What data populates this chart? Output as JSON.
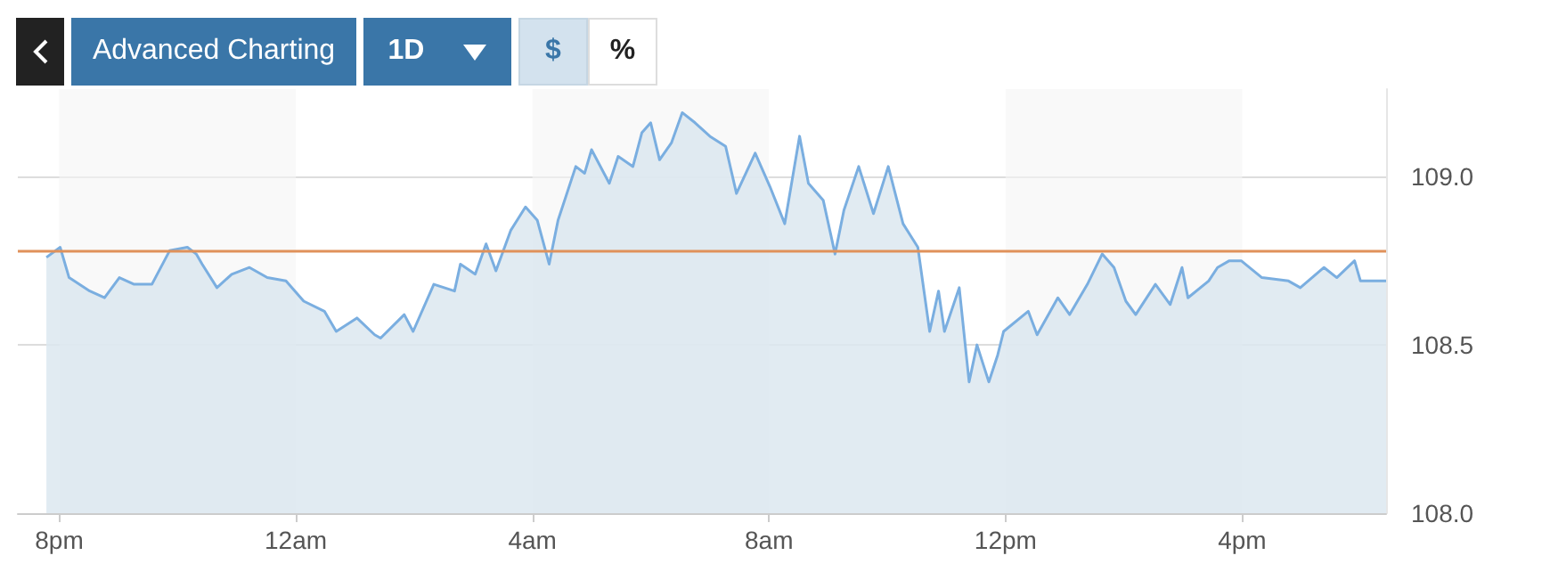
{
  "chart_data": {
    "type": "area",
    "annotations": [
      "Advanced Charting",
      "1D",
      "$",
      "%"
    ],
    "x": [
      "--01-01T19:47",
      "--01-01T20:01",
      "--01-01T20:10",
      "--01-01T20:31",
      "--01-01T20:46",
      "--01-01T21:01",
      "--01-01T21:16",
      "--01-01T21:34",
      "--01-01T21:52",
      "--01-01T22:10",
      "--01-01T22:19",
      "--01-01T22:25",
      "--01-01T22:40",
      "--01-01T22:55",
      "--01-01T23:13",
      "--01-01T23:31",
      "--01-01T23:50",
      "--01-02T00:08",
      "--01-02T00:29",
      "--01-02T00:41",
      "--01-02T01:02",
      "--01-02T01:20",
      "--01-02T01:26",
      "--01-02T01:50",
      "--01-02T01:59",
      "--01-02T02:20",
      "--01-02T02:41",
      "--01-02T02:47",
      "--01-02T03:02",
      "--01-02T03:13",
      "--01-02T03:23",
      "--01-02T03:38",
      "--01-02T03:53",
      "--01-02T04:05",
      "--01-02T04:17",
      "--01-02T04:26",
      "--01-02T04:44",
      "--01-02T04:53",
      "--01-02T05:00",
      "--01-02T05:18",
      "--01-02T05:27",
      "--01-02T05:42",
      "--01-02T05:51",
      "--01-02T06:00",
      "--01-02T06:09",
      "--01-02T06:21",
      "--01-02T06:32",
      "--01-02T06:45",
      "--01-02T07:00",
      "--01-02T07:16",
      "--01-02T07:27",
      "--01-02T07:46",
      "--01-02T08:01",
      "--01-02T08:16",
      "--01-02T08:31",
      "--01-02T08:40",
      "--01-02T08:55",
      "--01-02T09:07",
      "--01-02T09:16",
      "--01-02T09:31",
      "--01-02T09:46",
      "--01-02T10:01",
      "--01-02T10:16",
      "--01-02T10:31",
      "--01-02T10:43",
      "--01-02T10:52",
      "--01-02T10:58",
      "--01-02T11:13",
      "--01-02T11:23",
      "--01-02T11:31",
      "--01-02T11:43",
      "--01-02T11:52",
      "--01-02T11:58",
      "--01-02T12:23",
      "--01-02T12:32",
      "--01-02T12:53",
      "--01-02T13:05",
      "--01-02T13:23",
      "--01-02T13:38",
      "--01-02T13:50",
      "--01-02T14:02",
      "--01-02T14:12",
      "--01-02T14:32",
      "--01-02T14:47",
      "--01-02T14:59",
      "--01-02T15:05",
      "--01-02T15:26",
      "--01-02T15:35",
      "--01-02T15:47",
      "--01-02T15:59",
      "--01-02T16:20",
      "--01-02T16:47",
      "--01-02T16:59",
      "--01-02T17:23",
      "--01-02T17:36",
      "--01-02T17:54",
      "--01-02T18:00",
      "--01-02T18:26"
    ],
    "series": [
      {
        "color": "#7aaee0",
        "values": [
          108.76,
          108.79,
          108.7,
          108.66,
          108.64,
          108.7,
          108.68,
          108.68,
          108.78,
          108.79,
          108.77,
          108.74,
          108.67,
          108.71,
          108.73,
          108.7,
          108.69,
          108.63,
          108.6,
          108.54,
          108.58,
          108.53,
          108.52,
          108.59,
          108.54,
          108.68,
          108.66,
          108.74,
          108.71,
          108.8,
          108.72,
          108.84,
          108.91,
          108.87,
          108.74,
          108.87,
          109.03,
          109.01,
          109.08,
          108.98,
          109.06,
          109.03,
          109.13,
          109.16,
          109.05,
          109.1,
          109.19,
          109.16,
          109.12,
          109.09,
          108.95,
          109.07,
          108.97,
          108.86,
          109.12,
          108.98,
          108.93,
          108.77,
          108.9,
          109.03,
          108.89,
          109.03,
          108.86,
          108.79,
          108.54,
          108.66,
          108.54,
          108.67,
          108.39,
          108.5,
          108.39,
          108.47,
          108.54,
          108.6,
          108.53,
          108.64,
          108.59,
          108.68,
          108.77,
          108.73,
          108.63,
          108.59,
          108.68,
          108.62,
          108.73,
          108.64,
          108.69,
          108.73,
          108.75,
          108.75,
          108.7,
          108.69,
          108.67,
          108.73,
          108.7,
          108.75,
          108.69,
          108.69
        ]
      }
    ],
    "xlim": [
      "--01-01T19:18",
      "--01-02T18:26"
    ],
    "xticks": [
      {
        "value": "--01-01T20:00",
        "label": "8pm"
      },
      {
        "value": "--01-02T00:00",
        "label": "12am"
      },
      {
        "value": "--01-02T04:00",
        "label": "4am"
      },
      {
        "value": "--01-02T08:00",
        "label": "8am"
      },
      {
        "value": "--01-02T12:00",
        "label": "12pm"
      },
      {
        "value": "--01-02T16:00",
        "label": "4pm"
      }
    ],
    "ylim": [
      108.0,
      109.26
    ],
    "yticks": [
      {
        "value": 108.0,
        "label": "108.0"
      },
      {
        "value": 108.5,
        "label": "108.5"
      },
      {
        "value": 109.0,
        "label": "109.0"
      }
    ],
    "ref_lines": [
      {
        "axis": "y",
        "value": 108.78,
        "color": "#e0915a"
      }
    ],
    "bands": [
      {
        "axis": "x",
        "from": "--01-01T20:00",
        "to": "--01-02T00:00",
        "color": "#f5f5f5"
      },
      {
        "axis": "x",
        "from": "--01-02T04:00",
        "to": "--01-02T08:00",
        "color": "#f5f5f5"
      },
      {
        "axis": "x",
        "from": "--01-02T12:00",
        "to": "--01-02T16:00",
        "color": "#f5f5f5"
      }
    ],
    "grid": "y",
    "marker": "none"
  }
}
